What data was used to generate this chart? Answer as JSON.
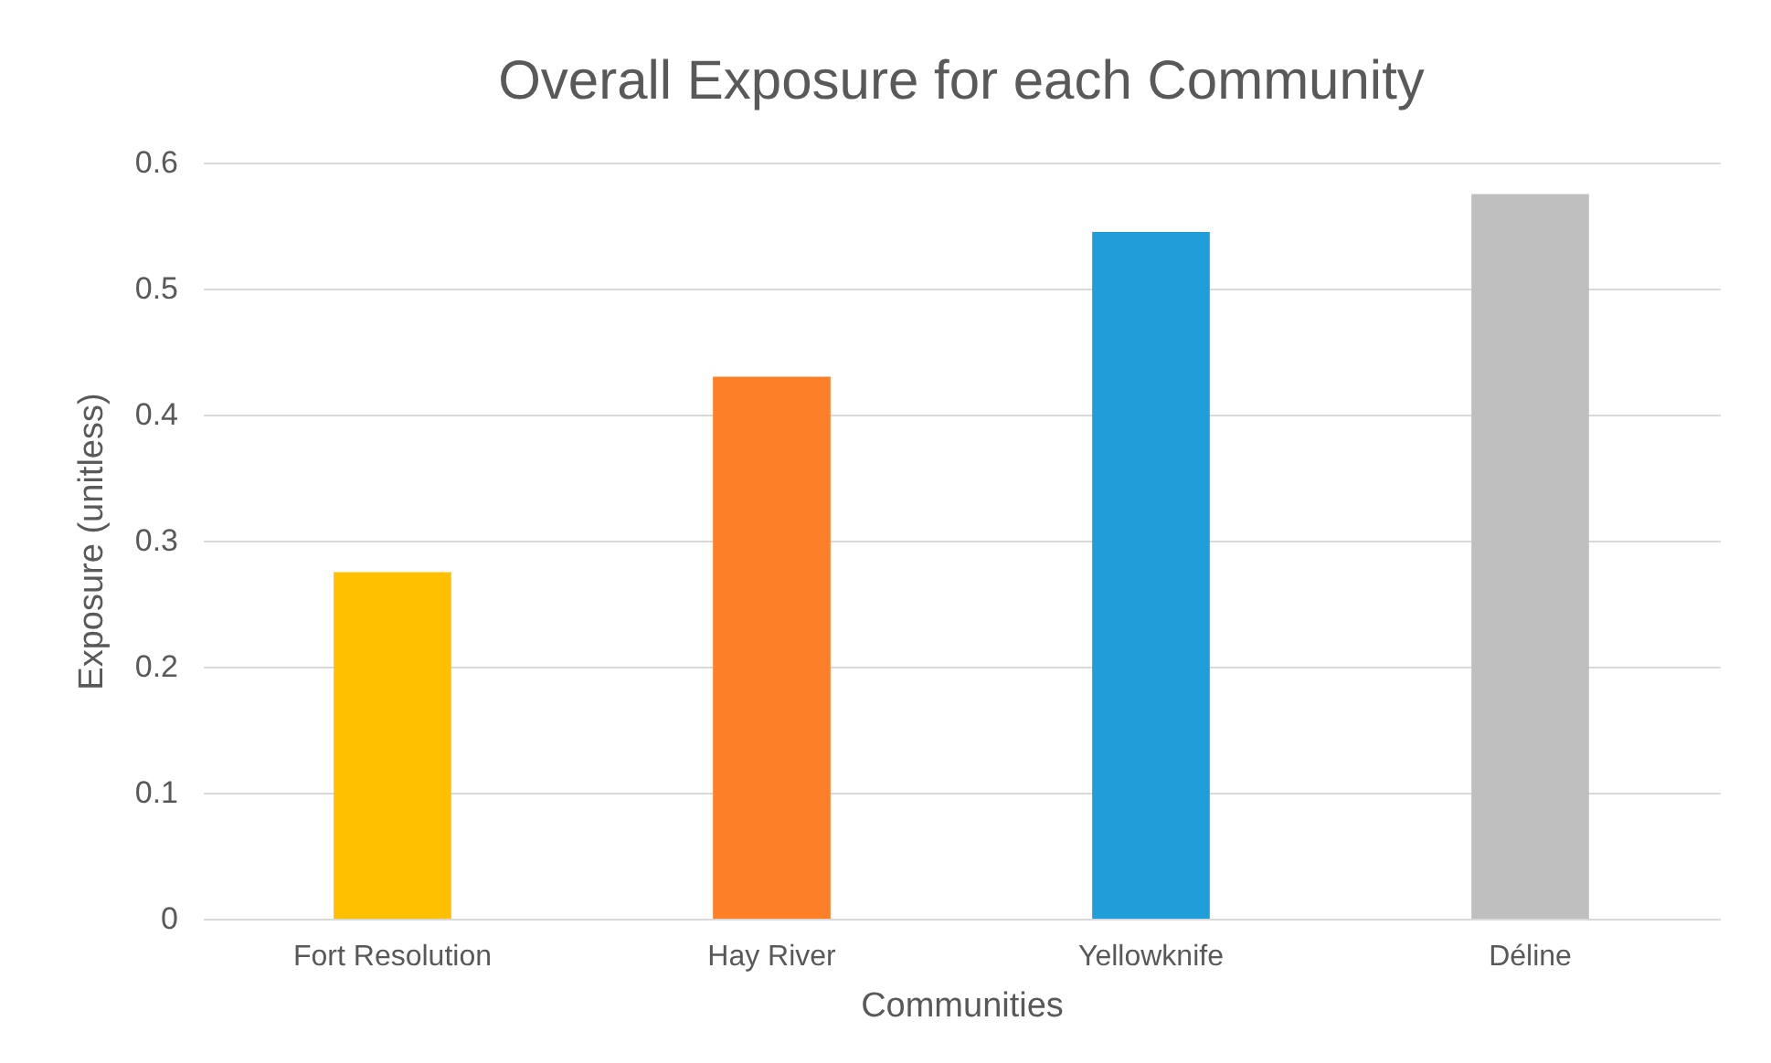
{
  "chart_data": {
    "type": "bar",
    "title": "Overall Exposure for each Community",
    "xlabel": "Communities",
    "ylabel": "Exposure (unitless)",
    "categories": [
      "Fort Resolution",
      "Hay River",
      "Yellowknife",
      "Déline"
    ],
    "values": [
      0.275,
      0.43,
      0.545,
      0.575
    ],
    "colors": [
      "#ffc000",
      "#fd7f28",
      "#1f9ed9",
      "#bfbfbf"
    ],
    "ylim": [
      0,
      0.6
    ],
    "yticks": [
      0,
      0.1,
      0.2,
      0.3,
      0.4,
      0.5,
      0.6
    ],
    "grid": "y",
    "legend": false
  }
}
